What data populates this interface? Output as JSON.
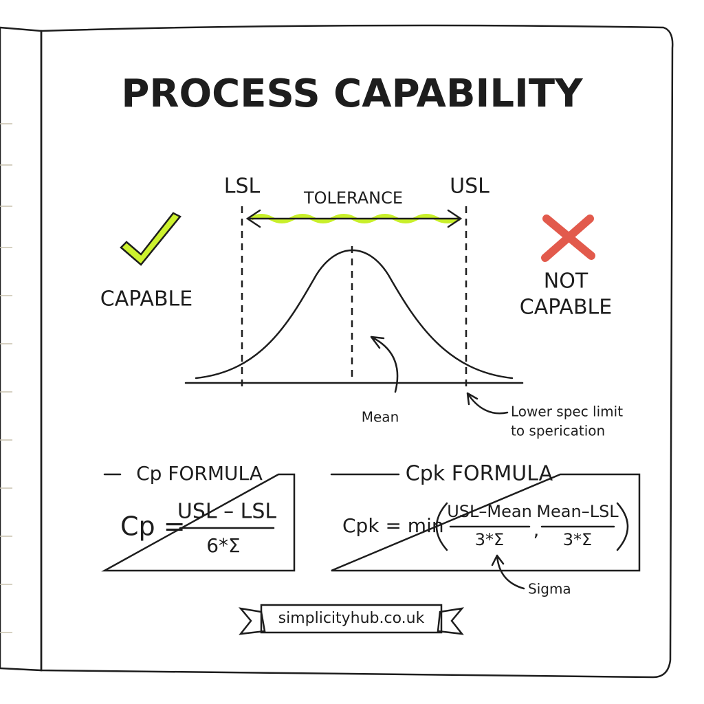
{
  "title": "PROCESS CAPABILITY",
  "diagram": {
    "lsl": "LSL",
    "usl": "USL",
    "tolerance": "TOLERANCE",
    "mean": "Mean",
    "note": [
      "Lower spec limit",
      "to sperication"
    ]
  },
  "verdicts": {
    "capable": "CAPABLE",
    "not_capable": [
      "NOT",
      "CAPABLE"
    ]
  },
  "formulas": [
    {
      "heading": "Cp FORMULA",
      "lhs": "Cp =",
      "numerator": "USL – LSL",
      "denominator": "6*Σ"
    },
    {
      "heading": "Cpk FORMULA",
      "lhs": "Cpk = min",
      "numerator": "USL–Mean",
      "denominator": "3*Σ",
      "separator": ",",
      "numerator2": "Mean–LSL",
      "denominator2": "3*Σ",
      "note": "Sigma"
    }
  ],
  "footer": "simplicityhub.co.uk"
}
